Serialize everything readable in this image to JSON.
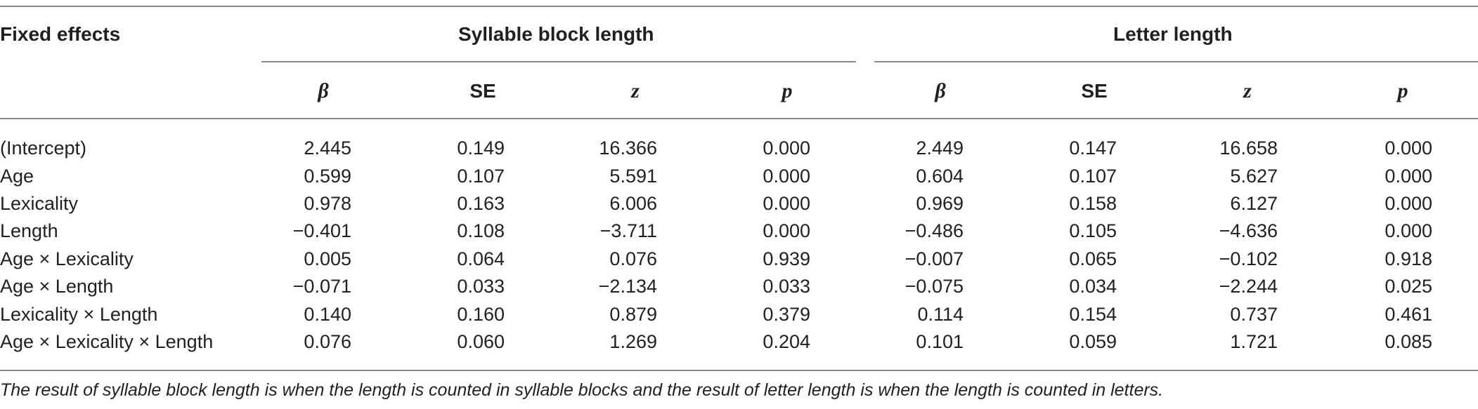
{
  "header": {
    "fixed_effects": "Fixed effects",
    "group1": "Syllable block length",
    "group2": "Letter length"
  },
  "columns": [
    "β",
    "SE",
    "z",
    "p",
    "β",
    "SE",
    "z",
    "p"
  ],
  "rows": [
    {
      "label": "(Intercept)",
      "values": [
        "2.445",
        "0.149",
        "16.366",
        "0.000",
        "2.449",
        "0.147",
        "16.658",
        "0.000"
      ]
    },
    {
      "label": "Age",
      "values": [
        "0.599",
        "0.107",
        "5.591",
        "0.000",
        "0.604",
        "0.107",
        "5.627",
        "0.000"
      ]
    },
    {
      "label": "Lexicality",
      "values": [
        "0.978",
        "0.163",
        "6.006",
        "0.000",
        "0.969",
        "0.158",
        "6.127",
        "0.000"
      ]
    },
    {
      "label": "Length",
      "values": [
        "−0.401",
        "0.108",
        "−3.711",
        "0.000",
        "−0.486",
        "0.105",
        "−4.636",
        "0.000"
      ]
    },
    {
      "label": "Age × Lexicality",
      "values": [
        "0.005",
        "0.064",
        "0.076",
        "0.939",
        "−0.007",
        "0.065",
        "−0.102",
        "0.918"
      ]
    },
    {
      "label": "Age × Length",
      "values": [
        "−0.071",
        "0.033",
        "−2.134",
        "0.033",
        "−0.075",
        "0.034",
        "−2.244",
        "0.025"
      ]
    },
    {
      "label": "Lexicality × Length",
      "values": [
        "0.140",
        "0.160",
        "0.879",
        "0.379",
        "0.114",
        "0.154",
        "0.737",
        "0.461"
      ]
    },
    {
      "label": "Age × Lexicality × Length",
      "values": [
        "0.076",
        "0.060",
        "1.269",
        "0.204",
        "0.101",
        "0.059",
        "1.721",
        "0.085"
      ]
    }
  ],
  "footnote": "The result of syllable block length is when the length is counted in syllable blocks and the result of letter length is when the length is counted in letters."
}
